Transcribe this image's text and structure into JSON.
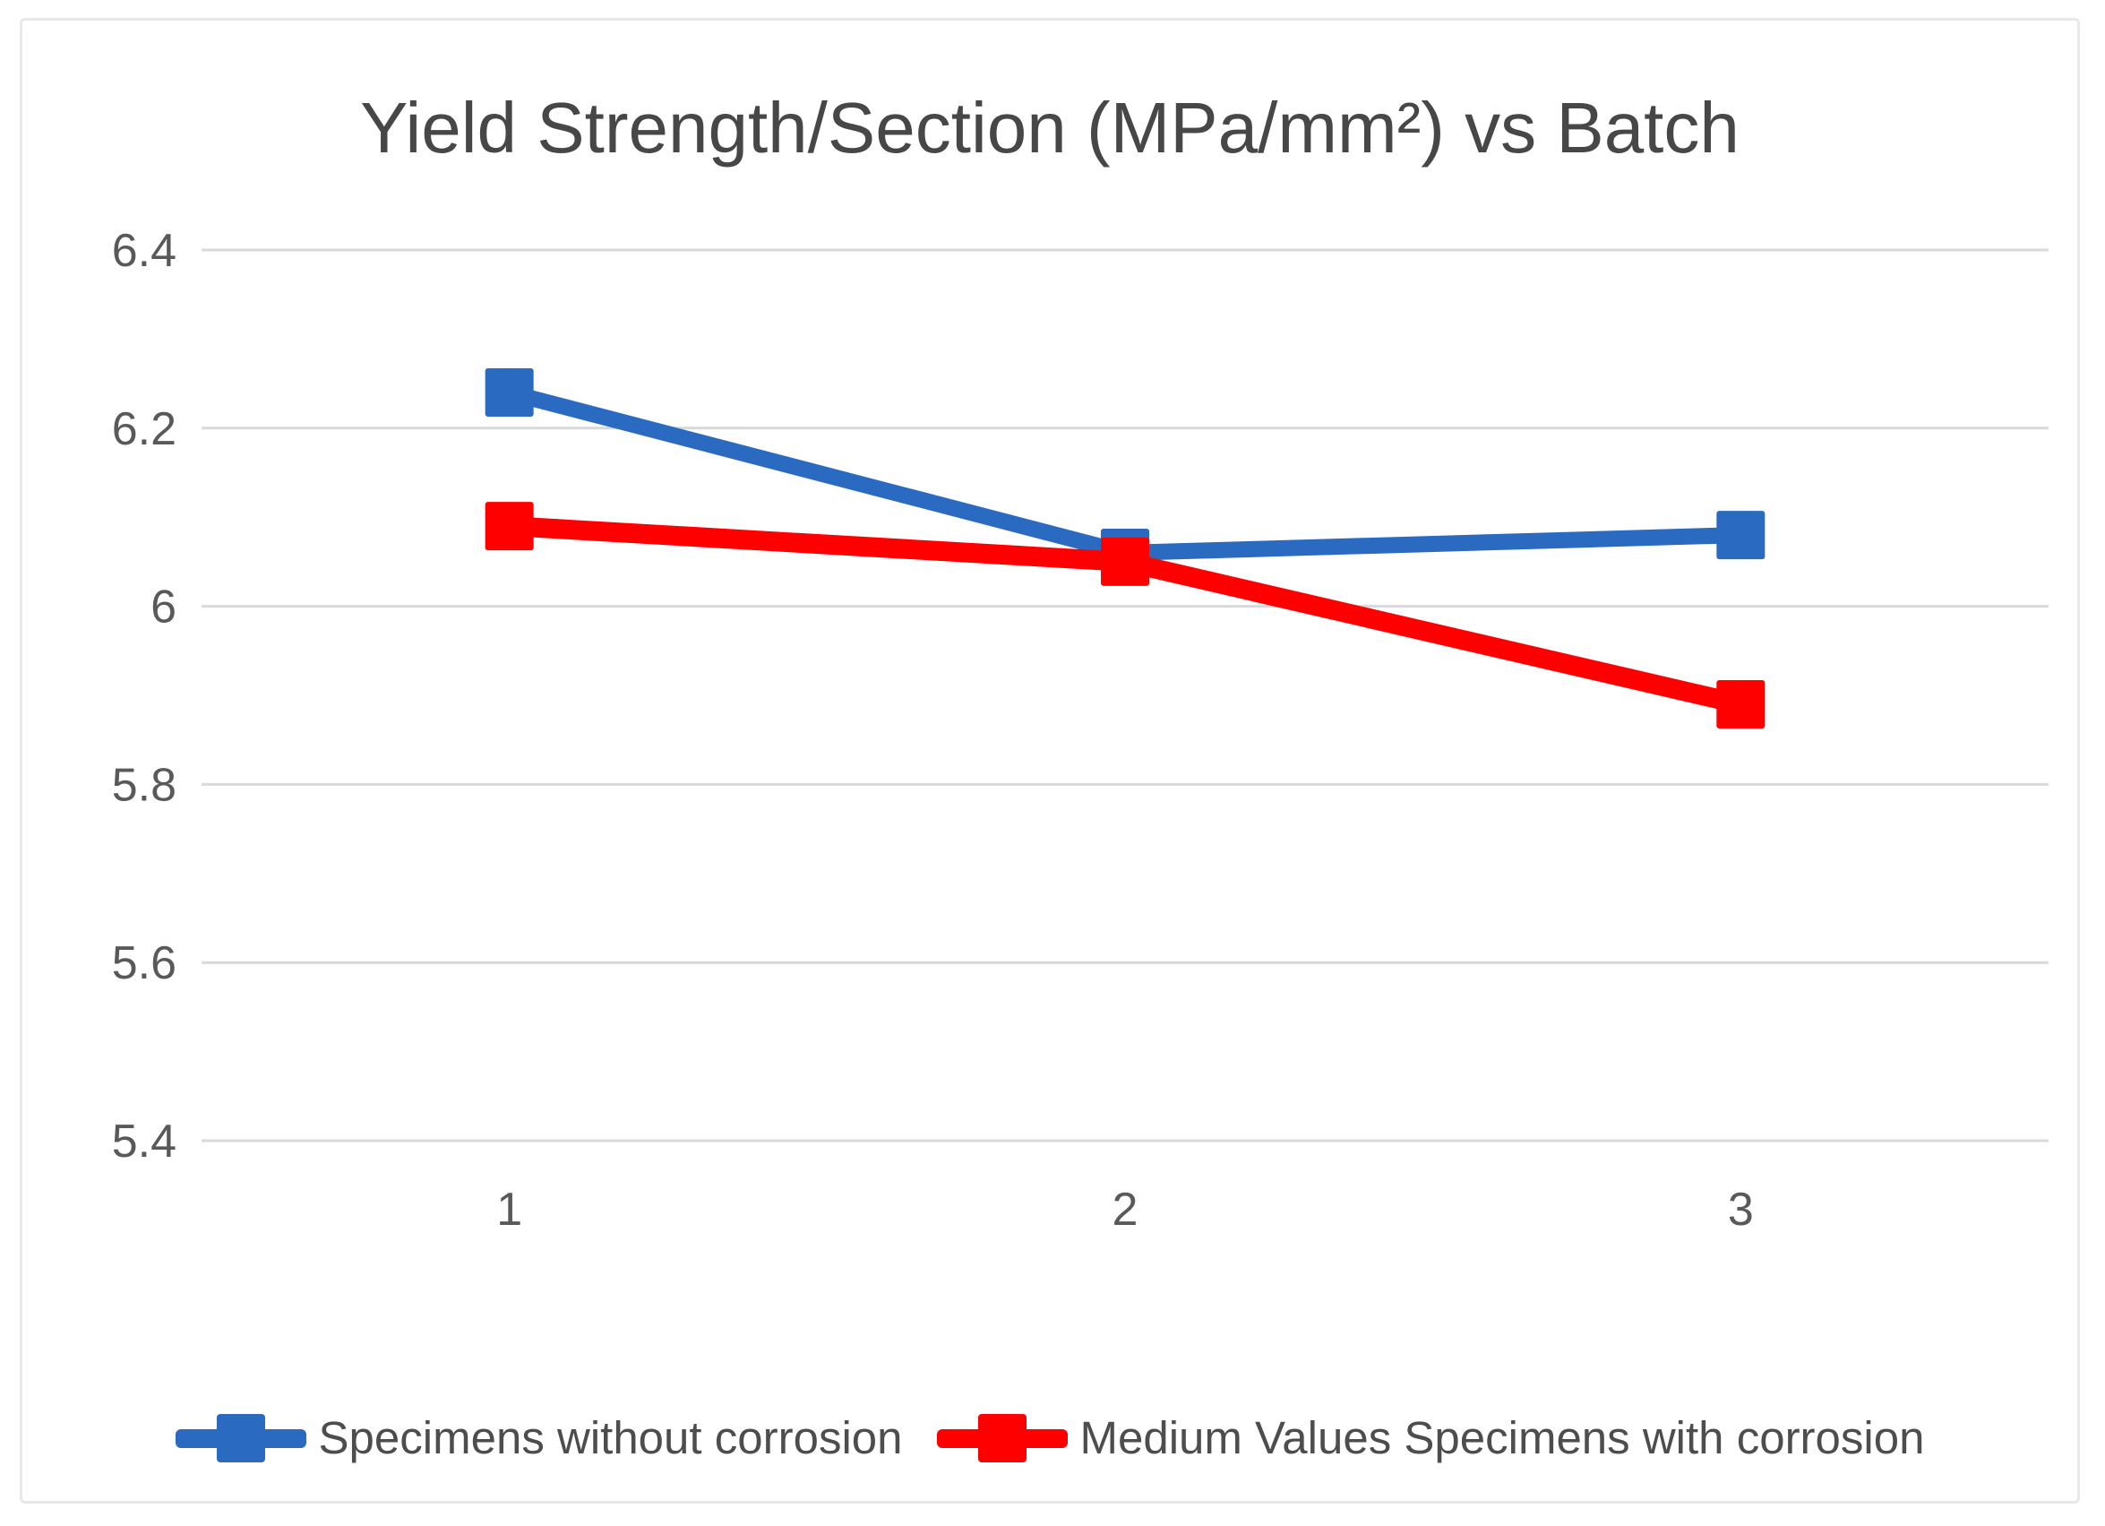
{
  "page": {
    "background_color": "#FFFFFF",
    "frame_border_color": "#E8E8E8"
  },
  "chart_data": {
    "type": "line",
    "title": "Yield Strength/Section (MPa/mm²) vs Batch",
    "title_color": "#474747",
    "categories": [
      "1",
      "2",
      "3"
    ],
    "series": [
      {
        "name": "Specimens without corrosion",
        "color": "#2A6AC0",
        "marker": "square",
        "values": [
          6.24,
          6.06,
          6.08
        ]
      },
      {
        "name": "Medium Values Specimens with corrosion",
        "color": "#FF0000",
        "marker": "square",
        "values": [
          6.09,
          6.05,
          5.89
        ]
      }
    ],
    "xlabel": "",
    "ylabel": "",
    "ylim": [
      5.4,
      6.4
    ],
    "ytick_labels": [
      "6.4",
      "6.2",
      "6",
      "5.8",
      "5.6",
      "5.4"
    ],
    "grid": "horizontal-only",
    "gridline_color": "#D9D9D9",
    "tick_label_color": "#595959",
    "legend_position": "bottom",
    "legend_text_color": "#4D4D4D"
  }
}
